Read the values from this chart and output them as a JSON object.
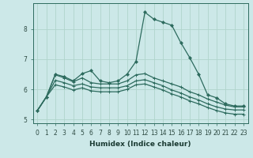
{
  "xlabel": "Humidex (Indice chaleur)",
  "bg_color": "#cce8e8",
  "line_color": "#2d6b5e",
  "grid_color": "#b0d4cc",
  "x": [
    0,
    1,
    2,
    3,
    4,
    5,
    6,
    7,
    8,
    9,
    10,
    11,
    12,
    13,
    14,
    15,
    16,
    17,
    18,
    19,
    20,
    21,
    22,
    23
  ],
  "line1": [
    5.3,
    5.75,
    6.5,
    6.42,
    6.28,
    6.52,
    6.62,
    6.28,
    6.22,
    6.28,
    6.5,
    6.92,
    8.55,
    8.32,
    8.22,
    8.12,
    7.55,
    7.05,
    6.5,
    5.82,
    5.72,
    5.52,
    5.45,
    5.45
  ],
  "line2": [
    5.3,
    5.75,
    6.48,
    6.38,
    6.25,
    6.38,
    6.22,
    6.18,
    6.18,
    6.18,
    6.28,
    6.48,
    6.52,
    6.38,
    6.28,
    6.18,
    6.08,
    5.92,
    5.82,
    5.68,
    5.58,
    5.48,
    5.42,
    5.42
  ],
  "line3": [
    5.3,
    5.75,
    6.3,
    6.22,
    6.12,
    6.18,
    6.08,
    6.05,
    6.05,
    6.05,
    6.12,
    6.28,
    6.32,
    6.22,
    6.12,
    5.98,
    5.88,
    5.75,
    5.65,
    5.52,
    5.42,
    5.35,
    5.32,
    5.32
  ],
  "line4": [
    5.3,
    5.75,
    6.15,
    6.08,
    5.98,
    6.05,
    5.95,
    5.92,
    5.92,
    5.92,
    6.0,
    6.15,
    6.18,
    6.08,
    5.98,
    5.85,
    5.75,
    5.62,
    5.52,
    5.4,
    5.3,
    5.22,
    5.18,
    5.18
  ],
  "ylim": [
    4.88,
    8.85
  ],
  "xlim": [
    -0.5,
    23.5
  ],
  "yticks": [
    5,
    6,
    7,
    8
  ],
  "xticks": [
    0,
    1,
    2,
    3,
    4,
    5,
    6,
    7,
    8,
    9,
    10,
    11,
    12,
    13,
    14,
    15,
    16,
    17,
    18,
    19,
    20,
    21,
    22,
    23
  ]
}
